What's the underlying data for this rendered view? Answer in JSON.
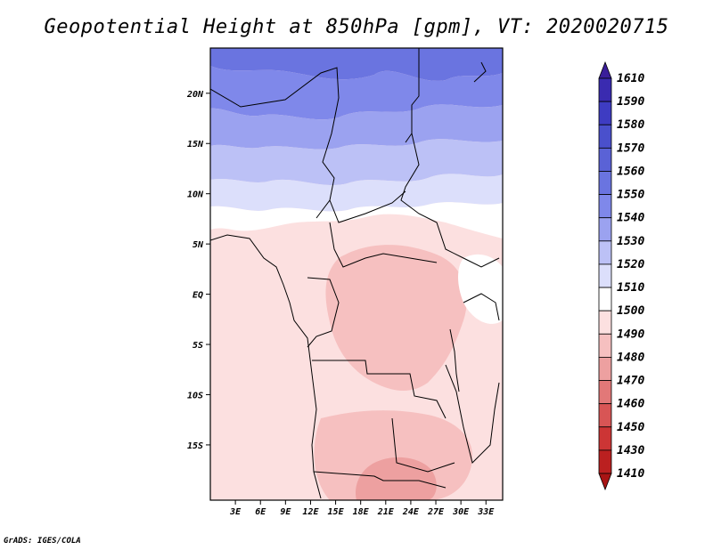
{
  "title": "Geopotential Height at 850hPa [gpm], VT: 2020020715",
  "credit": "GrADS: IGES/COLA",
  "map": {
    "lon_ticks": [
      "3E",
      "6E",
      "9E",
      "12E",
      "15E",
      "18E",
      "21E",
      "24E",
      "27E",
      "30E",
      "33E"
    ],
    "lat_ticks": [
      "20N",
      "15N",
      "10N",
      "5N",
      "EQ",
      "5S",
      "10S",
      "15S"
    ]
  },
  "colorbar": {
    "levels": [
      "1610",
      "1590",
      "1580",
      "1570",
      "1560",
      "1550",
      "1540",
      "1530",
      "1520",
      "1510",
      "1500",
      "1490",
      "1480",
      "1470",
      "1460",
      "1450",
      "1430",
      "1410"
    ],
    "colors": [
      "#3a1e9a",
      "#3a2bb0",
      "#3e3cc2",
      "#4a50cc",
      "#5a62d6",
      "#6a74e0",
      "#7f88ea",
      "#9ba2f0",
      "#bcc1f6",
      "#dcdffb",
      "#ffffff",
      "#fce0e0",
      "#f6c0c0",
      "#eda0a0",
      "#e27878",
      "#d85555",
      "#cc3535",
      "#bb2020",
      "#a81414"
    ]
  },
  "field": {
    "bands": [
      {
        "color": "#6a74e0"
      },
      {
        "color": "#7f88ea"
      },
      {
        "color": "#9ba2f0"
      },
      {
        "color": "#bcc1f6"
      },
      {
        "color": "#dcdffb"
      },
      {
        "color": "#ffffff"
      },
      {
        "color": "#fce0e0"
      },
      {
        "color": "#f6c0c0"
      },
      {
        "color": "#eda0a0"
      }
    ]
  }
}
